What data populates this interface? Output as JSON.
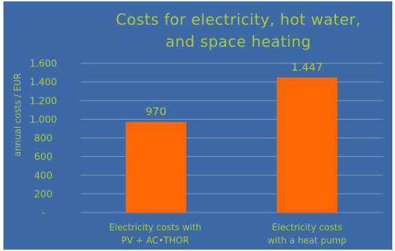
{
  "chart_data": {
    "type": "bar",
    "title_line1": "Costs for electricity, hot water,",
    "title_line2": "and space heating",
    "xlabel": "",
    "ylabel": "annual costs / EUR",
    "categories": [
      {
        "line1": "Electricity  costs with",
        "line2": "PV + AC•THOR"
      },
      {
        "line1": "Electricity costs",
        "line2": "with a heat pump"
      }
    ],
    "values": [
      970,
      1447
    ],
    "data_labels": [
      "970",
      "1.447"
    ],
    "ylim": [
      0,
      1600
    ],
    "ticks": [
      {
        "value": 0,
        "label": "-"
      },
      {
        "value": 200,
        "label": "200"
      },
      {
        "value": 400,
        "label": "400"
      },
      {
        "value": 600,
        "label": "600"
      },
      {
        "value": 800,
        "label": "800"
      },
      {
        "value": 1000,
        "label": "1.000"
      },
      {
        "value": 1200,
        "label": "1.200"
      },
      {
        "value": 1400,
        "label": "1.400"
      },
      {
        "value": 1600,
        "label": "1.600"
      }
    ],
    "grid": true,
    "legend": "none",
    "colors": {
      "background": "#3d6aa7",
      "bar": "#ff6600",
      "text": "#a7c93a",
      "grid": "#7f9fc6"
    }
  }
}
